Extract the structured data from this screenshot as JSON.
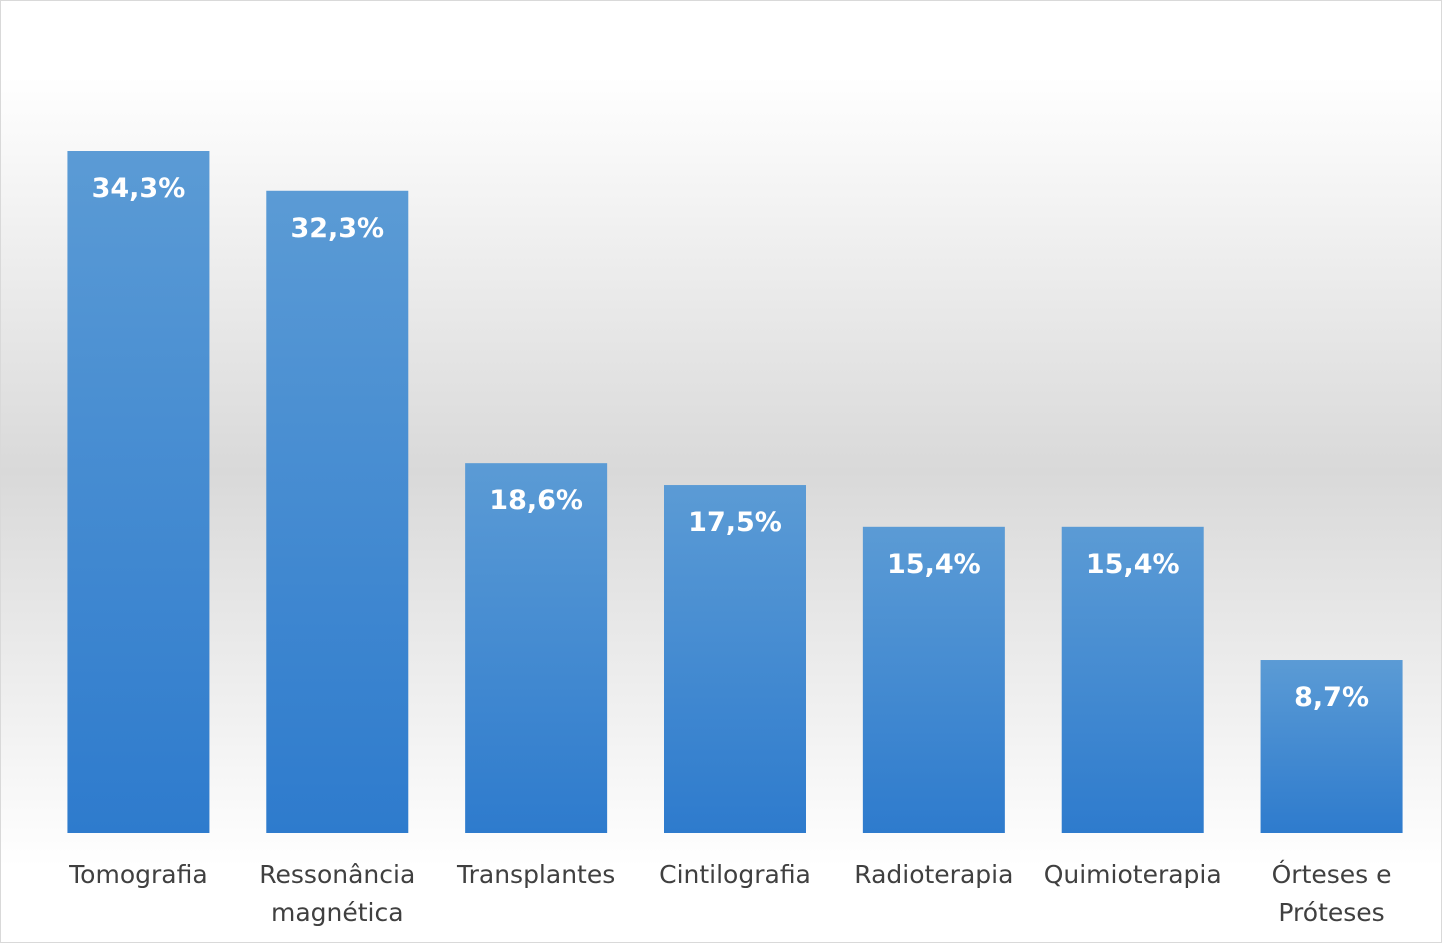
{
  "chart_data": {
    "type": "bar",
    "categories": [
      "Tomografia",
      "Ressonância magnética",
      "Transplantes",
      "Cintilografia",
      "Radioterapia",
      "Quimioterapia",
      "Órteses e Próteses"
    ],
    "values": [
      34.3,
      32.3,
      18.6,
      17.5,
      15.4,
      15.4,
      8.7
    ],
    "value_labels": [
      "34,3%",
      "32,3%",
      "18,6%",
      "17,5%",
      "15,4%",
      "15,4%",
      "8,7%"
    ],
    "color": "#4a8fd4"
  }
}
